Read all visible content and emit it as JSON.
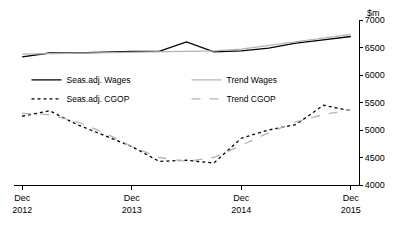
{
  "chart_data": {
    "type": "line",
    "y_label": "$m",
    "categories": [
      "Dec 2012",
      null,
      null,
      null,
      "Dec 2013",
      null,
      null,
      null,
      "Dec 2014",
      null,
      null,
      null,
      "Dec 2015"
    ],
    "series": [
      {
        "name": "Seas.adj. Wages",
        "color": "#000000",
        "line_style": "solid",
        "values": [
          6330,
          6400,
          6400,
          6420,
          6430,
          6430,
          6600,
          6420,
          6440,
          6490,
          6580,
          6640,
          6700
        ]
      },
      {
        "name": "Trend Wages",
        "color": "#b4b4b4",
        "line_style": "solid",
        "values": [
          6380,
          6390,
          6400,
          6410,
          6420,
          6430,
          6440,
          6440,
          6470,
          6540,
          6610,
          6680,
          6740
        ]
      },
      {
        "name": "Seas.adj. CGOP",
        "color": "#000000",
        "line_style": "dot",
        "values": [
          5250,
          5350,
          5100,
          4900,
          4700,
          4430,
          4450,
          4400,
          4850,
          5000,
          5100,
          5450,
          5350
        ]
      },
      {
        "name": "Trend CGOP",
        "color": "#b4b4b4",
        "line_style": "dash",
        "values": [
          5300,
          5280,
          5150,
          4950,
          4700,
          4500,
          4430,
          4500,
          4720,
          4950,
          5150,
          5280,
          5370
        ]
      }
    ],
    "ylim": [
      4000,
      7000
    ],
    "yticks": [
      4000,
      4500,
      5000,
      5500,
      6000,
      6500,
      7000
    ],
    "grid": false,
    "legend": "center"
  }
}
